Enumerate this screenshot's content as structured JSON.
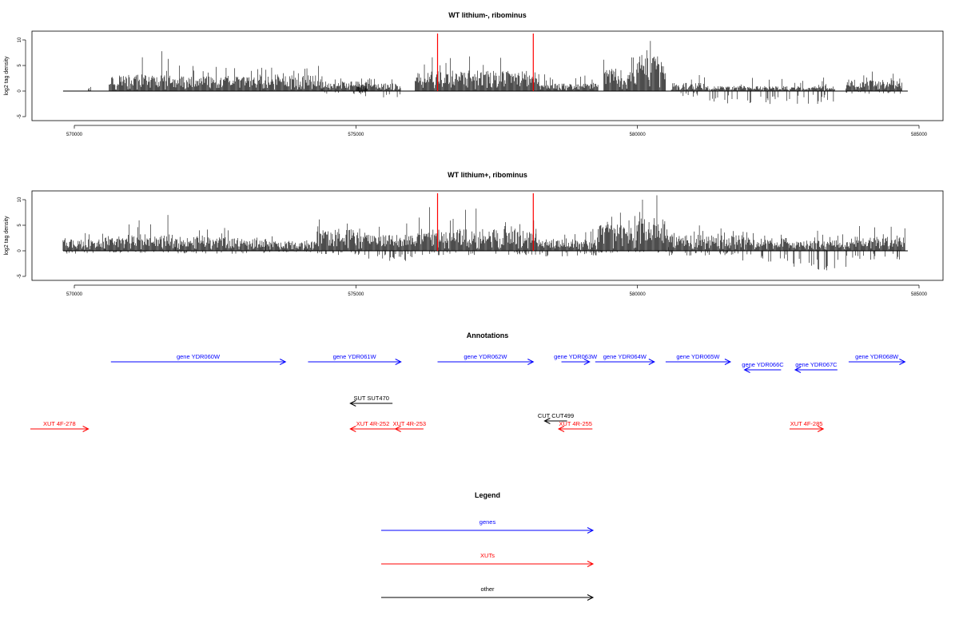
{
  "chart_data": [
    {
      "type": "bar",
      "title": "WT lithium-, ribominus",
      "ylabel": "log2 tag density",
      "xlim": [
        569800,
        584900
      ],
      "ylim": [
        -5,
        12
      ],
      "xticks": [
        "570000",
        "575000",
        "580000",
        "585000"
      ],
      "yticks": [
        "-5",
        "0",
        "5",
        "10"
      ],
      "red_markers": [
        576450,
        578150
      ],
      "segments": [
        {
          "start": 570250,
          "end": 570300,
          "amp": 1,
          "neg": 0,
          "peak": 1
        },
        {
          "start": 570620,
          "end": 571750,
          "amp": 2.6,
          "neg": 0,
          "peak": 8
        },
        {
          "start": 571750,
          "end": 573300,
          "amp": 2.3,
          "neg": 0,
          "peak": 5
        },
        {
          "start": 573300,
          "end": 574400,
          "amp": 2.5,
          "neg": 0,
          "peak": 5
        },
        {
          "start": 574400,
          "end": 575200,
          "amp": 1.5,
          "neg": 0.4,
          "peak": 3
        },
        {
          "start": 575000,
          "end": 575800,
          "amp": 1.2,
          "neg": 1.2,
          "peak": 2.5
        },
        {
          "start": 576050,
          "end": 578250,
          "amp": 3.2,
          "neg": 0,
          "peak": 7
        },
        {
          "start": 578250,
          "end": 579300,
          "amp": 1.2,
          "neg": 0,
          "peak": 3.5
        },
        {
          "start": 579400,
          "end": 580000,
          "amp": 3.5,
          "neg": 0,
          "peak": 8
        },
        {
          "start": 580000,
          "end": 580500,
          "amp": 6,
          "neg": 0,
          "peak": 11
        },
        {
          "start": 580600,
          "end": 581200,
          "amp": 1.3,
          "neg": 0.8,
          "peak": 3.5
        },
        {
          "start": 581200,
          "end": 583500,
          "amp": 0.8,
          "neg": 1.8,
          "peak": 3
        },
        {
          "start": 583700,
          "end": 584700,
          "amp": 1.8,
          "neg": 0.4,
          "peak": 4
        }
      ]
    },
    {
      "type": "bar",
      "title": "WT lithium+, ribominus",
      "ylabel": "log2 tag density",
      "xlim": [
        569800,
        584900
      ],
      "ylim": [
        -5,
        12
      ],
      "xticks": [
        "570000",
        "575000",
        "580000",
        "585000"
      ],
      "yticks": [
        "-5",
        "0",
        "5",
        "10"
      ],
      "red_markers": [
        576450,
        578150
      ],
      "segments": [
        {
          "start": 569800,
          "end": 570550,
          "amp": 1.8,
          "neg": 0.4,
          "peak": 3.5
        },
        {
          "start": 570550,
          "end": 571800,
          "amp": 2.6,
          "neg": 0.3,
          "peak": 7.5
        },
        {
          "start": 571800,
          "end": 573400,
          "amp": 2.2,
          "neg": 0.4,
          "peak": 4.5
        },
        {
          "start": 573400,
          "end": 574300,
          "amp": 1.5,
          "neg": 0.2,
          "peak": 3.5
        },
        {
          "start": 574300,
          "end": 575200,
          "amp": 3.5,
          "neg": 0.6,
          "peak": 7
        },
        {
          "start": 575200,
          "end": 576050,
          "amp": 2.5,
          "neg": 1.5,
          "peak": 6
        },
        {
          "start": 576050,
          "end": 578200,
          "amp": 3.5,
          "neg": 0.6,
          "peak": 9
        },
        {
          "start": 578200,
          "end": 579300,
          "amp": 1.8,
          "neg": 0.8,
          "peak": 5
        },
        {
          "start": 579300,
          "end": 580000,
          "amp": 4.2,
          "neg": 0.3,
          "peak": 8
        },
        {
          "start": 580000,
          "end": 580550,
          "amp": 5.5,
          "neg": 0.4,
          "peak": 11
        },
        {
          "start": 580550,
          "end": 581800,
          "amp": 2.5,
          "neg": 0.7,
          "peak": 5
        },
        {
          "start": 581800,
          "end": 582700,
          "amp": 2,
          "neg": 1.6,
          "peak": 4
        },
        {
          "start": 582700,
          "end": 583700,
          "amp": 1.6,
          "neg": 2.8,
          "peak": 4
        },
        {
          "start": 583700,
          "end": 584750,
          "amp": 2.2,
          "neg": 1.3,
          "peak": 5
        }
      ]
    }
  ],
  "annotations": {
    "title": "Annotations",
    "features": [
      {
        "label": "gene YDR060W",
        "start": 570650,
        "end": 573750,
        "strand": "+",
        "row": 0,
        "kind": "gene"
      },
      {
        "label": "gene YDR061W",
        "start": 574150,
        "end": 575800,
        "strand": "+",
        "row": 0,
        "kind": "gene"
      },
      {
        "label": "gene YDR062W",
        "start": 576450,
        "end": 578150,
        "strand": "+",
        "row": 0,
        "kind": "gene"
      },
      {
        "label": "gene YDR063W",
        "start": 578650,
        "end": 579150,
        "strand": "+",
        "row": 0,
        "kind": "gene"
      },
      {
        "label": "gene YDR064W",
        "start": 579250,
        "end": 580300,
        "strand": "+",
        "row": 0,
        "kind": "gene"
      },
      {
        "label": "gene YDR065W",
        "start": 580500,
        "end": 581650,
        "strand": "+",
        "row": 0,
        "kind": "gene"
      },
      {
        "label": "gene YDR066C",
        "start": 581900,
        "end": 582550,
        "strand": "-",
        "row": 1,
        "kind": "gene"
      },
      {
        "label": "gene YDR067C",
        "start": 582800,
        "end": 583550,
        "strand": "-",
        "row": 1,
        "kind": "gene"
      },
      {
        "label": "gene YDR068W",
        "start": 583750,
        "end": 584750,
        "strand": "+",
        "row": 0,
        "kind": "gene"
      },
      {
        "label": "SUT SUT470",
        "start": 574900,
        "end": 575650,
        "strand": "-",
        "row": 2,
        "kind": "other"
      },
      {
        "label": "CUT CUT499",
        "start": 578350,
        "end": 578750,
        "strand": "-",
        "row": 3,
        "kind": "other"
      },
      {
        "label": "XUT 4F-278",
        "start": 569000,
        "end": 570250,
        "strand": "+",
        "row": 4,
        "kind": "xut"
      },
      {
        "label": "XUT 4R-252",
        "start": 574900,
        "end": 575700,
        "strand": "-",
        "row": 4,
        "kind": "xut"
      },
      {
        "label": "XUT 4R-253",
        "start": 575700,
        "end": 576200,
        "strand": "-",
        "row": 4,
        "kind": "xut"
      },
      {
        "label": "XUT 4R-255",
        "start": 578600,
        "end": 579200,
        "strand": "-",
        "row": 4,
        "kind": "xut"
      },
      {
        "label": "XUT 4F-285",
        "start": 582700,
        "end": 583300,
        "strand": "+",
        "row": 4,
        "kind": "xut"
      }
    ]
  },
  "legend": {
    "title": "Legend",
    "items": [
      {
        "label": "genes",
        "color": "#0000ff"
      },
      {
        "label": "XUTs",
        "color": "#ff0000"
      },
      {
        "label": "other",
        "color": "#000000"
      }
    ]
  },
  "colors": {
    "gene": "#0000ff",
    "xut": "#ff0000",
    "other": "#000000",
    "marker": "#ff0000",
    "signal": "#000000"
  }
}
